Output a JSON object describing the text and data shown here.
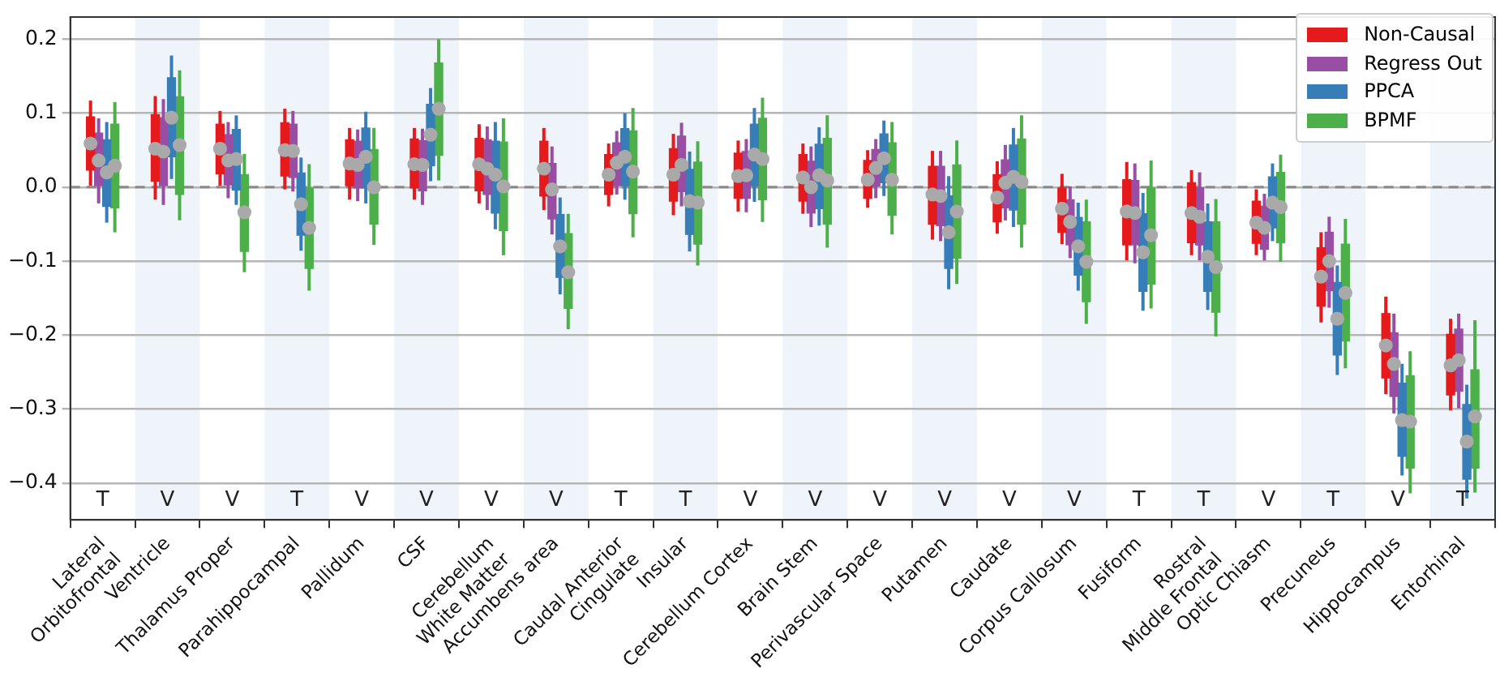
{
  "chart_data": {
    "type": "box",
    "categories": [
      "Lateral\nOrbitofrontal",
      "Ventricle",
      "Thalamus Proper",
      "Parahippocampal",
      "Pallidum",
      "CSF",
      "Cerebellum\nWhite Matter",
      "Accumbens area",
      "Caudal Anterior\nCingulate",
      "Insular",
      "Cerebellum Cortex",
      "Brain Stem",
      "Perivascular Space",
      "Putamen",
      "Caudate",
      "Corpus Callosum",
      "Fusiform",
      "Rostral\nMiddle Frontal",
      "Optic Chiasm",
      "Precuneus",
      "Hippocampus",
      "Entorhinal"
    ],
    "series": [
      {
        "name": "Non-Causal",
        "color": "#e41a1c",
        "boxes": [
          {
            "low": 0.002,
            "q1": 0.023,
            "median": 0.059,
            "q3": 0.095,
            "high": 0.117
          },
          {
            "low": -0.017,
            "q1": 0.008,
            "median": 0.052,
            "q3": 0.098,
            "high": 0.123
          },
          {
            "low": 0.002,
            "q1": 0.018,
            "median": 0.052,
            "q3": 0.085,
            "high": 0.103
          },
          {
            "low": -0.003,
            "q1": 0.015,
            "median": 0.05,
            "q3": 0.087,
            "high": 0.106
          },
          {
            "low": -0.017,
            "q1": 0.002,
            "median": 0.032,
            "q3": 0.064,
            "high": 0.08
          },
          {
            "low": -0.017,
            "q1": -0.001,
            "median": 0.031,
            "q3": 0.065,
            "high": 0.08
          },
          {
            "low": -0.022,
            "q1": -0.005,
            "median": 0.031,
            "q3": 0.066,
            "high": 0.085
          },
          {
            "low": -0.031,
            "q1": -0.012,
            "median": 0.025,
            "q3": 0.062,
            "high": 0.08
          },
          {
            "low": -0.026,
            "q1": -0.01,
            "median": 0.017,
            "q3": 0.044,
            "high": 0.059
          },
          {
            "low": -0.038,
            "q1": -0.019,
            "median": 0.017,
            "q3": 0.052,
            "high": 0.072
          },
          {
            "low": -0.033,
            "q1": -0.015,
            "median": 0.015,
            "q3": 0.046,
            "high": 0.063
          },
          {
            "low": -0.036,
            "q1": -0.019,
            "median": 0.013,
            "q3": 0.044,
            "high": 0.059
          },
          {
            "low": -0.028,
            "q1": -0.015,
            "median": 0.01,
            "q3": 0.036,
            "high": 0.05
          },
          {
            "low": -0.071,
            "q1": -0.05,
            "median": -0.01,
            "q3": 0.028,
            "high": 0.049
          },
          {
            "low": -0.063,
            "q1": -0.047,
            "median": -0.014,
            "q3": 0.017,
            "high": 0.035
          },
          {
            "low": -0.077,
            "q1": -0.061,
            "median": -0.029,
            "q3": 0.0,
            "high": 0.018
          },
          {
            "low": -0.099,
            "q1": -0.078,
            "median": -0.033,
            "q3": 0.01,
            "high": 0.034
          },
          {
            "low": -0.092,
            "q1": -0.075,
            "median": -0.035,
            "q3": 0.006,
            "high": 0.023
          },
          {
            "low": -0.092,
            "q1": -0.076,
            "median": -0.048,
            "q3": -0.019,
            "high": -0.003
          },
          {
            "low": -0.183,
            "q1": -0.161,
            "median": -0.121,
            "q3": -0.082,
            "high": -0.061
          },
          {
            "low": -0.28,
            "q1": -0.258,
            "median": -0.214,
            "q3": -0.171,
            "high": -0.148
          },
          {
            "low": -0.302,
            "q1": -0.281,
            "median": -0.241,
            "q3": -0.199,
            "high": -0.178
          }
        ]
      },
      {
        "name": "Regress Out",
        "color": "#984ea3",
        "boxes": [
          {
            "low": -0.022,
            "q1": 0.002,
            "median": 0.036,
            "q3": 0.073,
            "high": 0.093
          },
          {
            "low": -0.024,
            "q1": 0.002,
            "median": 0.048,
            "q3": 0.094,
            "high": 0.119
          },
          {
            "low": -0.015,
            "q1": 0.003,
            "median": 0.036,
            "q3": 0.071,
            "high": 0.088
          },
          {
            "low": -0.006,
            "q1": 0.013,
            "median": 0.049,
            "q3": 0.085,
            "high": 0.103
          },
          {
            "low": -0.019,
            "q1": -0.001,
            "median": 0.03,
            "q3": 0.062,
            "high": 0.078
          },
          {
            "low": -0.024,
            "q1": -0.005,
            "median": 0.03,
            "q3": 0.063,
            "high": 0.079
          },
          {
            "low": -0.031,
            "q1": -0.01,
            "median": 0.025,
            "q3": 0.064,
            "high": 0.082
          },
          {
            "low": -0.064,
            "q1": -0.043,
            "median": -0.003,
            "q3": 0.032,
            "high": 0.055
          },
          {
            "low": -0.01,
            "q1": 0.002,
            "median": 0.033,
            "q3": 0.06,
            "high": 0.076
          },
          {
            "low": -0.026,
            "q1": -0.006,
            "median": 0.03,
            "q3": 0.069,
            "high": 0.087
          },
          {
            "low": -0.034,
            "q1": -0.015,
            "median": 0.016,
            "q3": 0.048,
            "high": 0.065
          },
          {
            "low": -0.054,
            "q1": -0.035,
            "median": 0.0,
            "q3": 0.035,
            "high": 0.055
          },
          {
            "low": -0.015,
            "q1": 0.0,
            "median": 0.026,
            "q3": 0.051,
            "high": 0.065
          },
          {
            "low": -0.073,
            "q1": -0.052,
            "median": -0.012,
            "q3": 0.028,
            "high": 0.049
          },
          {
            "low": -0.045,
            "q1": -0.028,
            "median": 0.006,
            "q3": 0.037,
            "high": 0.057
          },
          {
            "low": -0.096,
            "q1": -0.078,
            "median": -0.047,
            "q3": -0.017,
            "high": 0.001
          },
          {
            "low": -0.103,
            "q1": -0.078,
            "median": -0.035,
            "q3": 0.009,
            "high": 0.032
          },
          {
            "low": -0.099,
            "q1": -0.078,
            "median": -0.04,
            "q3": -0.001,
            "high": 0.02
          },
          {
            "low": -0.099,
            "q1": -0.084,
            "median": -0.055,
            "q3": -0.026,
            "high": -0.009
          },
          {
            "low": -0.163,
            "q1": -0.14,
            "median": -0.1,
            "q3": -0.061,
            "high": -0.04
          },
          {
            "low": -0.306,
            "q1": -0.283,
            "median": -0.239,
            "q3": -0.197,
            "high": -0.171
          },
          {
            "low": -0.299,
            "q1": -0.276,
            "median": -0.234,
            "q3": -0.192,
            "high": -0.171
          }
        ]
      },
      {
        "name": "PPCA",
        "color": "#377eb8",
        "boxes": [
          {
            "low": -0.048,
            "q1": -0.026,
            "median": 0.02,
            "q3": 0.064,
            "high": 0.088
          },
          {
            "low": 0.011,
            "q1": 0.041,
            "median": 0.094,
            "q3": 0.148,
            "high": 0.178
          },
          {
            "low": -0.024,
            "q1": -0.004,
            "median": 0.038,
            "q3": 0.078,
            "high": 0.097
          },
          {
            "low": -0.086,
            "q1": -0.065,
            "median": -0.023,
            "q3": 0.019,
            "high": 0.04
          },
          {
            "low": -0.022,
            "q1": -0.001,
            "median": 0.041,
            "q3": 0.08,
            "high": 0.102
          },
          {
            "low": 0.008,
            "q1": 0.029,
            "median": 0.071,
            "q3": 0.112,
            "high": 0.134
          },
          {
            "low": -0.057,
            "q1": -0.035,
            "median": 0.017,
            "q3": 0.062,
            "high": 0.088
          },
          {
            "low": -0.145,
            "q1": -0.122,
            "median": -0.08,
            "q3": -0.037,
            "high": -0.014
          },
          {
            "low": -0.017,
            "q1": 0.002,
            "median": 0.041,
            "q3": 0.079,
            "high": 0.1
          },
          {
            "low": -0.087,
            "q1": -0.064,
            "median": -0.019,
            "q3": 0.024,
            "high": 0.048
          },
          {
            "low": -0.02,
            "q1": 0.002,
            "median": 0.044,
            "q3": 0.085,
            "high": 0.107
          },
          {
            "low": -0.052,
            "q1": -0.029,
            "median": 0.016,
            "q3": 0.058,
            "high": 0.081
          },
          {
            "low": -0.012,
            "q1": 0.006,
            "median": 0.039,
            "q3": 0.072,
            "high": 0.09
          },
          {
            "low": -0.138,
            "q1": -0.11,
            "median": -0.061,
            "q3": -0.012,
            "high": 0.015
          },
          {
            "low": -0.054,
            "q1": -0.031,
            "median": 0.014,
            "q3": 0.057,
            "high": 0.08
          },
          {
            "low": -0.14,
            "q1": -0.119,
            "median": -0.08,
            "q3": -0.041,
            "high": -0.021
          },
          {
            "low": -0.167,
            "q1": -0.141,
            "median": -0.088,
            "q3": -0.036,
            "high": -0.008
          },
          {
            "low": -0.166,
            "q1": -0.141,
            "median": -0.094,
            "q3": -0.047,
            "high": -0.022
          },
          {
            "low": -0.073,
            "q1": -0.055,
            "median": -0.021,
            "q3": 0.014,
            "high": 0.032
          },
          {
            "low": -0.254,
            "q1": -0.227,
            "median": -0.178,
            "q3": -0.129,
            "high": -0.106
          },
          {
            "low": -0.39,
            "q1": -0.364,
            "median": -0.315,
            "q3": -0.265,
            "high": -0.239
          },
          {
            "low": -0.421,
            "q1": -0.395,
            "median": -0.344,
            "q3": -0.294,
            "high": -0.267
          }
        ]
      },
      {
        "name": "BPMF",
        "color": "#4daf4a",
        "boxes": [
          {
            "low": -0.061,
            "q1": -0.028,
            "median": 0.029,
            "q3": 0.085,
            "high": 0.115
          },
          {
            "low": -0.045,
            "q1": -0.01,
            "median": 0.057,
            "q3": 0.122,
            "high": 0.158
          },
          {
            "low": -0.115,
            "q1": -0.087,
            "median": -0.034,
            "q3": 0.017,
            "high": 0.045
          },
          {
            "low": -0.14,
            "q1": -0.11,
            "median": -0.055,
            "q3": 0.0,
            "high": 0.031
          },
          {
            "low": -0.078,
            "q1": -0.05,
            "median": 0.0,
            "q3": 0.051,
            "high": 0.08
          },
          {
            "low": 0.009,
            "q1": 0.043,
            "median": 0.106,
            "q3": 0.168,
            "high": 0.2
          },
          {
            "low": -0.092,
            "q1": -0.059,
            "median": 0.001,
            "q3": 0.061,
            "high": 0.093
          },
          {
            "low": -0.192,
            "q1": -0.164,
            "median": -0.115,
            "q3": -0.063,
            "high": -0.036
          },
          {
            "low": -0.068,
            "q1": -0.036,
            "median": 0.021,
            "q3": 0.076,
            "high": 0.107
          },
          {
            "low": -0.106,
            "q1": -0.077,
            "median": -0.021,
            "q3": 0.034,
            "high": 0.062
          },
          {
            "low": -0.047,
            "q1": -0.017,
            "median": 0.038,
            "q3": 0.093,
            "high": 0.121
          },
          {
            "low": -0.082,
            "q1": -0.05,
            "median": 0.009,
            "q3": 0.066,
            "high": 0.097
          },
          {
            "low": -0.064,
            "q1": -0.038,
            "median": 0.01,
            "q3": 0.06,
            "high": 0.088
          },
          {
            "low": -0.131,
            "q1": -0.096,
            "median": -0.033,
            "q3": 0.03,
            "high": 0.063
          },
          {
            "low": -0.082,
            "q1": -0.05,
            "median": 0.007,
            "q3": 0.065,
            "high": 0.097
          },
          {
            "low": -0.185,
            "q1": -0.155,
            "median": -0.101,
            "q3": -0.047,
            "high": -0.017
          },
          {
            "low": -0.164,
            "q1": -0.131,
            "median": -0.065,
            "q3": 0.0,
            "high": 0.036
          },
          {
            "low": -0.202,
            "q1": -0.169,
            "median": -0.108,
            "q3": -0.047,
            "high": -0.016
          },
          {
            "low": -0.101,
            "q1": -0.075,
            "median": -0.027,
            "q3": 0.02,
            "high": 0.044
          },
          {
            "low": -0.245,
            "q1": -0.208,
            "median": -0.143,
            "q3": -0.077,
            "high": -0.043
          },
          {
            "low": -0.414,
            "q1": -0.38,
            "median": -0.317,
            "q3": -0.255,
            "high": -0.222
          },
          {
            "low": -0.413,
            "q1": -0.38,
            "median": -0.31,
            "q3": -0.247,
            "high": -0.18
          }
        ]
      }
    ],
    "ylim": [
      -0.45,
      0.23
    ],
    "yticks": [
      {
        "value": -0.4,
        "label": "−0.4"
      },
      {
        "value": -0.3,
        "label": "−0.3"
      },
      {
        "value": -0.2,
        "label": "−0.2"
      },
      {
        "value": -0.1,
        "label": "−0.1"
      },
      {
        "value": 0,
        "label": "0.0"
      },
      0.1,
      0.2
    ],
    "grid": "y",
    "legend": "top right",
    "ref_lines": [
      {
        "axis": "y",
        "value": 0,
        "color": "#888888",
        "line_style": "dashed"
      }
    ],
    "bands": [
      {
        "axis": "x",
        "from": "Ventricle",
        "to": "Ventricle",
        "color": "#eef4fa"
      },
      {
        "axis": "x",
        "from": "Parahippocampal",
        "to": "Parahippocampal",
        "color": "#eef4fa"
      },
      {
        "axis": "x",
        "from": "CSF",
        "to": "CSF",
        "color": "#eef4fa"
      },
      {
        "axis": "x",
        "from": "Accumbens area",
        "to": "Accumbens area",
        "color": "#eef4fa"
      },
      {
        "axis": "x",
        "from": "Insular",
        "to": "Insular",
        "color": "#eef4fa"
      },
      {
        "axis": "x",
        "from": "Brain Stem",
        "to": "Brain Stem",
        "color": "#eef4fa"
      },
      {
        "axis": "x",
        "from": "Putamen",
        "to": "Putamen",
        "color": "#eef4fa"
      },
      {
        "axis": "x",
        "from": "Corpus Callosum",
        "to": "Corpus Callosum",
        "color": "#eef4fa"
      },
      {
        "axis": "x",
        "from": "Rostral\nMiddle Frontal",
        "to": "Rostral\nMiddle Frontal",
        "color": "#eef4fa"
      },
      {
        "axis": "x",
        "from": "Precuneus",
        "to": "Precuneus",
        "color": "#eef4fa"
      },
      {
        "axis": "x",
        "from": "Entorhinal",
        "to": "Entorhinal",
        "color": "#eef4fa"
      }
    ],
    "annotations": [
      "T",
      "V",
      "V",
      "T",
      "V",
      "V",
      "V",
      "V",
      "T",
      "T",
      "V",
      "V",
      "V",
      "V",
      "V",
      "V",
      "T",
      "T",
      "V",
      "T",
      "V",
      "T"
    ]
  }
}
